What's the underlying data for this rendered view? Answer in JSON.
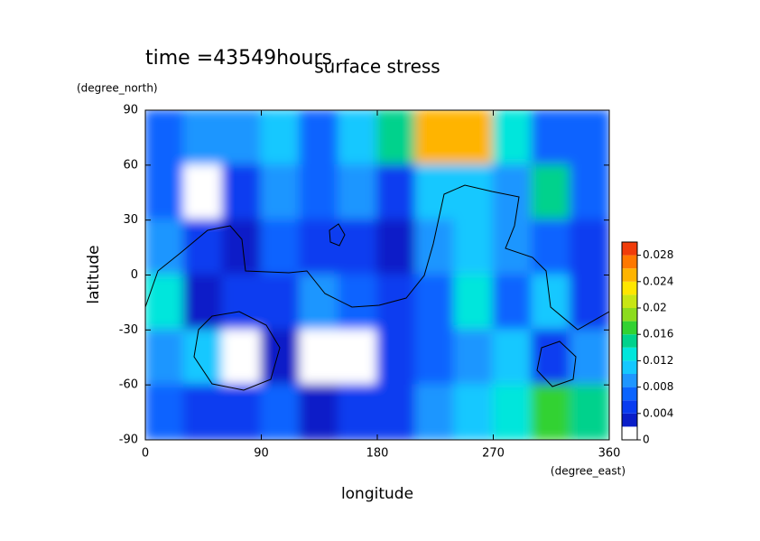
{
  "chart_data": {
    "type": "contour",
    "title": "surface stress",
    "subtitle": "time =43549hours",
    "x_label": "longitude",
    "y_label": "latitude",
    "x_units": "(degree_east)",
    "y_units": "(degree_north)",
    "xlim": [
      0,
      360
    ],
    "ylim": [
      -90,
      90
    ],
    "xticks": [
      0,
      90,
      180,
      270,
      360
    ],
    "yticks": [
      90,
      60,
      30,
      0,
      -30,
      -60,
      -90
    ],
    "x": [
      15,
      45,
      75,
      105,
      135,
      165,
      195,
      225,
      255,
      285,
      315,
      345
    ],
    "y": [
      75,
      45,
      15,
      -15,
      -45,
      -75
    ],
    "values": [
      [
        0.006,
        0.008,
        0.008,
        0.01,
        0.006,
        0.01,
        0.014,
        0.024,
        0.024,
        0.012,
        0.006,
        0.006
      ],
      [
        0.006,
        0.0,
        0.004,
        0.008,
        0.006,
        0.008,
        0.004,
        0.01,
        0.01,
        0.008,
        0.014,
        0.006
      ],
      [
        0.008,
        0.004,
        0.002,
        0.006,
        0.004,
        0.004,
        0.002,
        0.008,
        0.01,
        0.008,
        0.006,
        0.004
      ],
      [
        0.012,
        0.002,
        0.004,
        0.004,
        0.008,
        0.006,
        0.004,
        0.006,
        0.012,
        0.006,
        0.01,
        0.004
      ],
      [
        0.008,
        0.01,
        0.0,
        0.002,
        0.0,
        0.001,
        0.004,
        0.006,
        0.008,
        0.01,
        0.004,
        0.008
      ],
      [
        0.006,
        0.004,
        0.004,
        0.006,
        0.002,
        0.004,
        0.004,
        0.008,
        0.01,
        0.012,
        0.016,
        0.014
      ]
    ],
    "clim": [
      0,
      0.03
    ],
    "cticks": [
      0,
      0.004,
      0.008,
      0.012,
      0.016,
      0.02,
      0.024,
      0.028
    ],
    "colors": [
      "#ffffff",
      "#0a1ec8",
      "#0a3cf0",
      "#0a64ff",
      "#1e96ff",
      "#14c8ff",
      "#00e6dc",
      "#00d28c",
      "#32d232",
      "#8cdc1e",
      "#c8e614",
      "#ffe600",
      "#ffb400",
      "#ff7800",
      "#f03c0a"
    ]
  }
}
